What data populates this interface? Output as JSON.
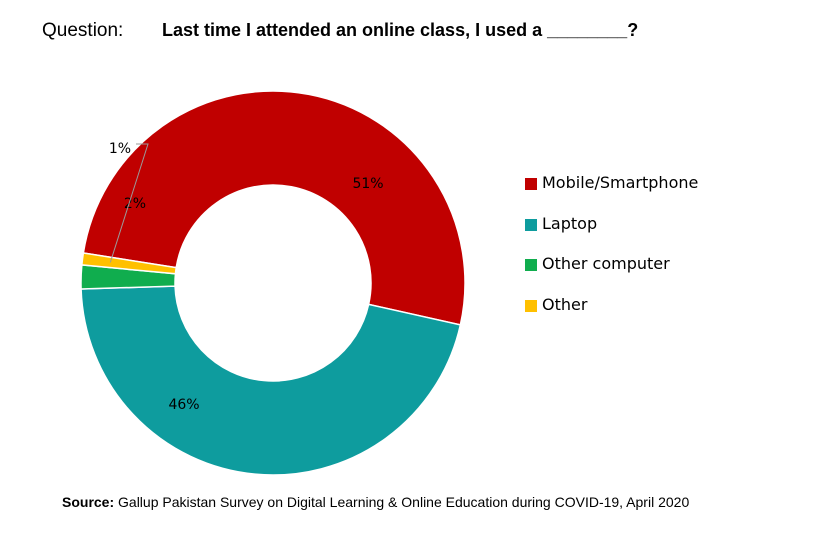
{
  "header": {
    "label": "Question:",
    "text": "Last time I attended an online class, I used a ________?"
  },
  "chart_data": {
    "type": "pie",
    "variant": "donut",
    "title": "",
    "categories": [
      "Mobile/Smartphone",
      "Laptop",
      "Other computer",
      "Other"
    ],
    "values": [
      51,
      46,
      2,
      1
    ],
    "value_labels": [
      "51%",
      "46%",
      "2%",
      "1%"
    ],
    "colors": [
      "#C00000",
      "#0E9C9E",
      "#10AD4E",
      "#FFC000"
    ],
    "legend_position": "right"
  },
  "source": {
    "label": "Source:",
    "text": "Gallup Pakistan Survey on Digital Learning & Online Education during COVID-19, April 2020"
  }
}
